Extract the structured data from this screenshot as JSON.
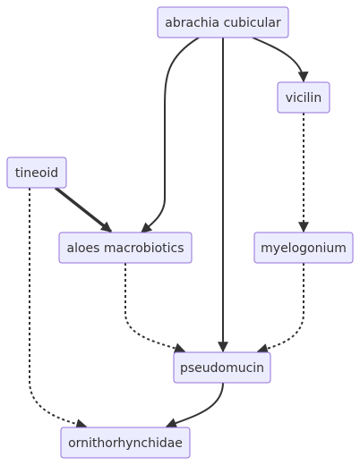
{
  "diagram": {
    "nodes": [
      {
        "id": "abrachia",
        "label": "abrachia cubicular"
      },
      {
        "id": "vicilin",
        "label": "vicilin"
      },
      {
        "id": "tineoid",
        "label": "tineoid"
      },
      {
        "id": "aloes",
        "label": "aloes macrobiotics"
      },
      {
        "id": "myelogonium",
        "label": "myelogonium"
      },
      {
        "id": "pseudomucin",
        "label": "pseudomucin"
      },
      {
        "id": "ornithorhynchidae",
        "label": "ornithorhynchidae"
      }
    ],
    "edges": [
      {
        "from": "abrachia",
        "to": "aloes",
        "style": "solid"
      },
      {
        "from": "abrachia",
        "to": "pseudomucin",
        "style": "solid"
      },
      {
        "from": "abrachia",
        "to": "vicilin",
        "style": "solid"
      },
      {
        "from": "vicilin",
        "to": "myelogonium",
        "style": "dotted"
      },
      {
        "from": "tineoid",
        "to": "aloes",
        "style": "thick"
      },
      {
        "from": "tineoid",
        "to": "ornithorhynchidae",
        "style": "dotted"
      },
      {
        "from": "aloes",
        "to": "pseudomucin",
        "style": "dotted"
      },
      {
        "from": "myelogonium",
        "to": "pseudomucin",
        "style": "dotted"
      },
      {
        "from": "pseudomucin",
        "to": "ornithorhynchidae",
        "style": "solid"
      }
    ]
  }
}
